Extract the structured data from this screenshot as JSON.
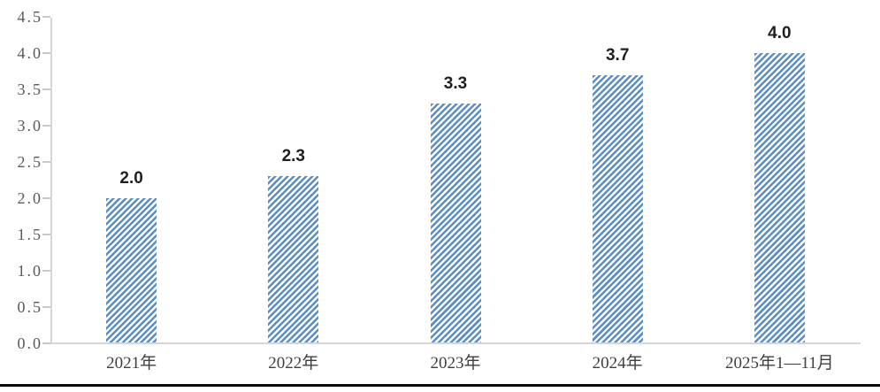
{
  "chart_data": {
    "type": "bar",
    "categories": [
      "2021年",
      "2022年",
      "2023年",
      "2024年",
      "2025年1—11月"
    ],
    "values": [
      2.0,
      2.3,
      3.3,
      3.7,
      4.0
    ],
    "data_labels": [
      "2.0",
      "2.3",
      "3.3",
      "3.7",
      "4.0"
    ],
    "title": "",
    "xlabel": "",
    "ylabel": "",
    "ylim": [
      0,
      4.5
    ],
    "ytick_step": 0.5,
    "ytick_labels": [
      "0.0",
      "0.5",
      "1.0",
      "1.5",
      "2.0",
      "2.5",
      "3.0",
      "3.5",
      "4.0",
      "4.5"
    ],
    "grid": false,
    "legend": "none",
    "bar_style": {
      "pattern": "diagonal-hatch-upward",
      "stripe_color": "#5B8DC8",
      "pattern_background": "#FFFFFF"
    },
    "colors": {
      "axis_line": "#D6D6D6",
      "tick_mark": "#C9C9C9",
      "ytick_label_text": "#595959",
      "category_label_text": "#3F3F3F",
      "data_label_text": "#1F1F1F",
      "bottom_border": "#0A0A0A"
    }
  }
}
